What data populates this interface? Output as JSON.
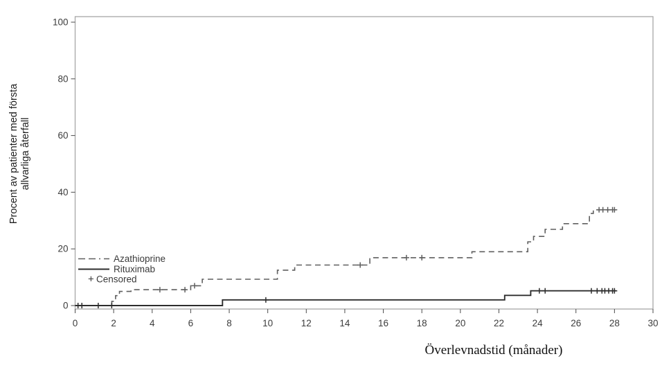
{
  "labels": {
    "y_title_line1": "Procent av patienter med första",
    "y_title_line2": "allvarliga återfall",
    "x_title": "Överlevnadstid (månader)"
  },
  "legend": {
    "azathioprine_label": "Azathioprine",
    "rituximab_label": "Rituximab",
    "censored_symbol": "+",
    "censored_label": "Censored"
  },
  "colors": {
    "background": "#ffffff",
    "frame": "#a6a6a6",
    "ticks": "#4b4b4b",
    "tick_labels": "#3c3c3c",
    "azathioprine": "#5f5f5f",
    "rituximab": "#2d2d2d",
    "censored": "#3a3a3a"
  },
  "chart_data": {
    "type": "line",
    "subtype": "kaplan-meier-step",
    "title": "",
    "xlabel": "Överlevnadstid (månader)",
    "ylabel": "Procent av patienter med första allvarliga återfall",
    "xlim": [
      0,
      30
    ],
    "ylim": [
      0,
      100
    ],
    "x_ticks": [
      0,
      2,
      4,
      6,
      8,
      10,
      12,
      14,
      16,
      18,
      20,
      22,
      24,
      26,
      28,
      30
    ],
    "y_ticks": [
      0,
      20,
      40,
      60,
      80,
      100
    ],
    "grid": false,
    "legend_position": "inside lower-left",
    "censored_marker": "+",
    "series": [
      {
        "name": "Azathioprine",
        "line_style": "dashed",
        "color": "#5f5f5f",
        "steps": [
          [
            0,
            0
          ],
          [
            1.9,
            1.5
          ],
          [
            2.1,
            3.5
          ],
          [
            2.3,
            5.0
          ],
          [
            2.9,
            5.6
          ],
          [
            6.0,
            7.0
          ],
          [
            6.6,
            9.3
          ],
          [
            10.5,
            12.5
          ],
          [
            11.4,
            14.3
          ],
          [
            15.3,
            16.9
          ],
          [
            20.6,
            19.0
          ],
          [
            23.5,
            22.5
          ],
          [
            23.8,
            24.4
          ],
          [
            24.4,
            26.9
          ],
          [
            25.3,
            28.9
          ],
          [
            26.7,
            32.5
          ],
          [
            26.9,
            33.8
          ]
        ],
        "end_x": 28.1,
        "censored_x": [
          4.4,
          5.7,
          6.2,
          14.8,
          17.2,
          18.0,
          27.2,
          27.4,
          27.65,
          27.9,
          28.0
        ]
      },
      {
        "name": "Rituximab",
        "line_style": "solid",
        "color": "#2d2d2d",
        "steps": [
          [
            0,
            0
          ],
          [
            7.65,
            2.0
          ],
          [
            22.3,
            3.6
          ],
          [
            23.65,
            5.2
          ]
        ],
        "end_x": 28.1,
        "censored_x": [
          0.15,
          0.35,
          1.2,
          1.9,
          9.9,
          24.1,
          24.4,
          26.8,
          27.1,
          27.35,
          27.5,
          27.7,
          27.9,
          28.0
        ]
      }
    ]
  }
}
